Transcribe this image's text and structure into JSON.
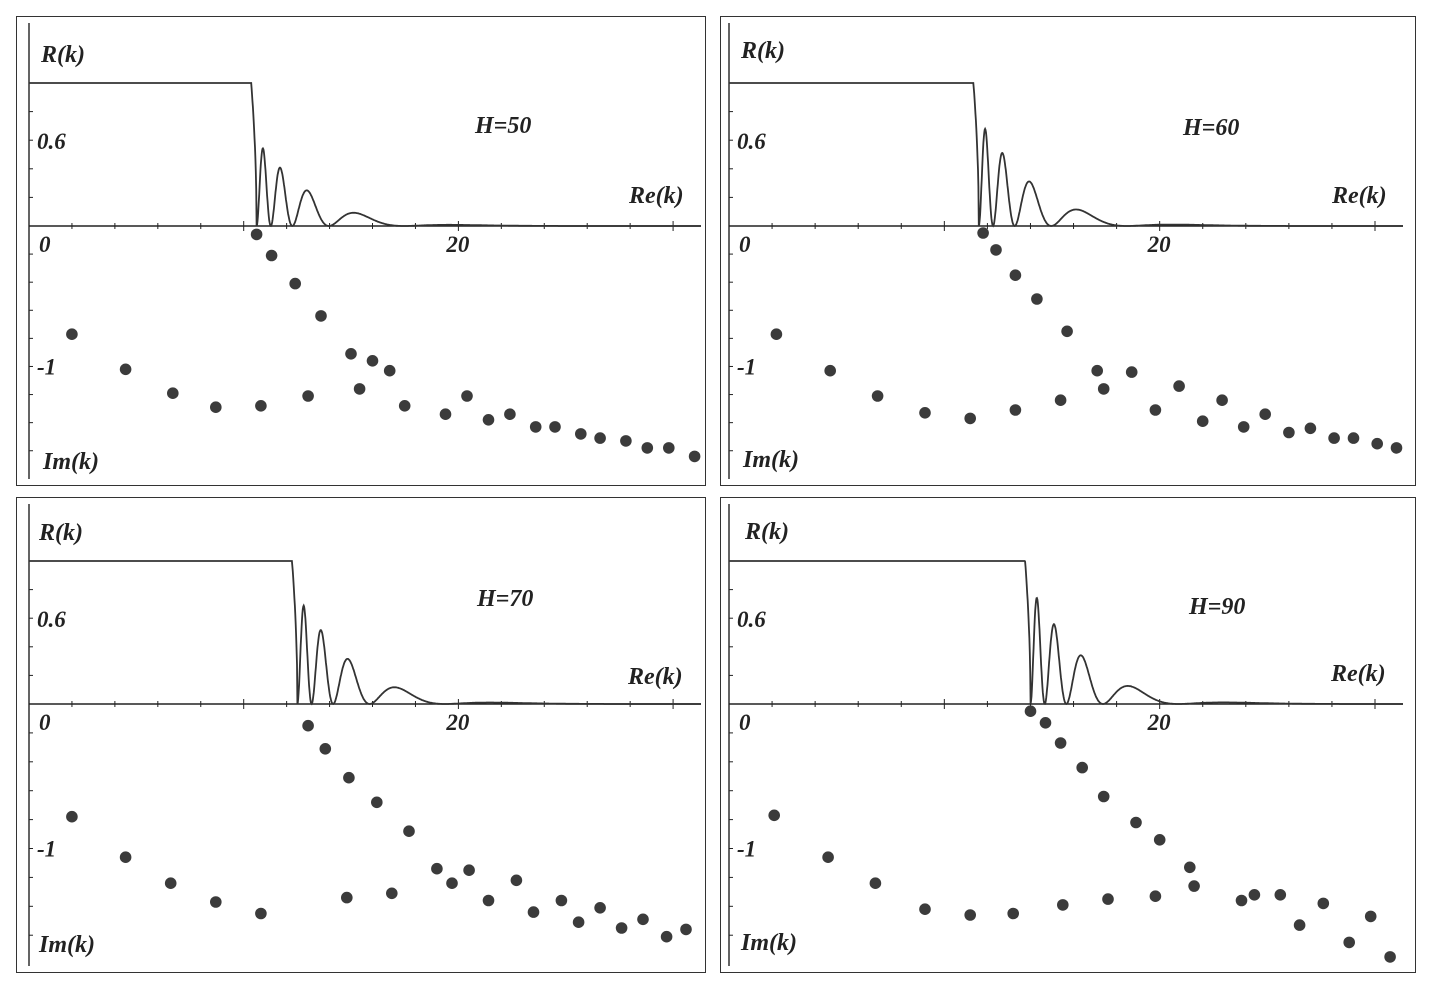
{
  "chart_data": [
    {
      "type": "line+scatter",
      "annotation": "H=50",
      "ylabel_top": "R(k)",
      "ylabel_bottom": "Im(k)",
      "xlabel": "Re(k)",
      "xtick_labels": [
        {
          "value": 0,
          "label": "0"
        },
        {
          "value": 20,
          "label": "20"
        }
      ],
      "r_tick_label": {
        "value": 0.6,
        "label": "0.6"
      },
      "im_tick_label": {
        "value": -1,
        "label": "-1"
      },
      "xlim": [
        0,
        31.3
      ],
      "r_ylim": [
        0,
        1.0
      ],
      "im_ylim": [
        -1.73,
        0
      ],
      "reflection_curve": {
        "plateau_value": 1.0,
        "cutoff": 10.6,
        "first_lobe_peak": 0.6
      },
      "poles": [
        {
          "x": 10.6,
          "y": -0.06
        },
        {
          "x": 11.3,
          "y": -0.21
        },
        {
          "x": 12.4,
          "y": -0.41
        },
        {
          "x": 13.6,
          "y": -0.64
        },
        {
          "x": 15.0,
          "y": -0.91
        },
        {
          "x": 16.0,
          "y": -0.96
        },
        {
          "x": 16.8,
          "y": -1.03
        },
        {
          "x": 2.0,
          "y": -0.77
        },
        {
          "x": 4.5,
          "y": -1.02
        },
        {
          "x": 6.7,
          "y": -1.19
        },
        {
          "x": 8.7,
          "y": -1.29
        },
        {
          "x": 10.8,
          "y": -1.28
        },
        {
          "x": 13.0,
          "y": -1.21
        },
        {
          "x": 15.4,
          "y": -1.16
        },
        {
          "x": 17.5,
          "y": -1.28
        },
        {
          "x": 19.4,
          "y": -1.34
        },
        {
          "x": 20.4,
          "y": -1.21
        },
        {
          "x": 21.4,
          "y": -1.38
        },
        {
          "x": 22.4,
          "y": -1.34
        },
        {
          "x": 23.6,
          "y": -1.43
        },
        {
          "x": 24.5,
          "y": -1.43
        },
        {
          "x": 25.7,
          "y": -1.48
        },
        {
          "x": 26.6,
          "y": -1.51
        },
        {
          "x": 27.8,
          "y": -1.53
        },
        {
          "x": 28.8,
          "y": -1.58
        },
        {
          "x": 29.8,
          "y": -1.58
        },
        {
          "x": 31.0,
          "y": -1.64
        }
      ]
    },
    {
      "type": "line+scatter",
      "annotation": "H=60",
      "ylabel_top": "R(k)",
      "ylabel_bottom": "Im(k)",
      "xlabel": "Re(k)",
      "xtick_labels": [
        {
          "value": 0,
          "label": "0"
        },
        {
          "value": 20,
          "label": "20"
        }
      ],
      "r_tick_label": {
        "value": 0.6,
        "label": "0.6"
      },
      "im_tick_label": {
        "value": -1,
        "label": "-1"
      },
      "xlim": [
        0,
        31.3
      ],
      "r_ylim": [
        0,
        1.0
      ],
      "im_ylim": [
        -1.73,
        0
      ],
      "reflection_curve": {
        "plateau_value": 1.0,
        "cutoff": 11.6,
        "first_lobe_peak": 0.75
      },
      "poles": [
        {
          "x": 11.8,
          "y": -0.05
        },
        {
          "x": 12.4,
          "y": -0.17
        },
        {
          "x": 13.3,
          "y": -0.35
        },
        {
          "x": 14.3,
          "y": -0.52
        },
        {
          "x": 15.7,
          "y": -0.75
        },
        {
          "x": 17.1,
          "y": -1.03
        },
        {
          "x": 17.4,
          "y": -1.16
        },
        {
          "x": 18.7,
          "y": -1.04
        },
        {
          "x": 19.8,
          "y": -1.31
        },
        {
          "x": 20.9,
          "y": -1.14
        },
        {
          "x": 22.0,
          "y": -1.39
        },
        {
          "x": 22.9,
          "y": -1.24
        },
        {
          "x": 23.9,
          "y": -1.43
        },
        {
          "x": 24.9,
          "y": -1.34
        },
        {
          "x": 26.0,
          "y": -1.47
        },
        {
          "x": 27.0,
          "y": -1.44
        },
        {
          "x": 28.1,
          "y": -1.51
        },
        {
          "x": 29.0,
          "y": -1.51
        },
        {
          "x": 30.1,
          "y": -1.55
        },
        {
          "x": 31.0,
          "y": -1.58
        },
        {
          "x": 2.2,
          "y": -0.77
        },
        {
          "x": 4.7,
          "y": -1.03
        },
        {
          "x": 6.9,
          "y": -1.21
        },
        {
          "x": 9.1,
          "y": -1.33
        },
        {
          "x": 11.2,
          "y": -1.37
        },
        {
          "x": 13.3,
          "y": -1.31
        },
        {
          "x": 15.4,
          "y": -1.24
        }
      ]
    },
    {
      "type": "line+scatter",
      "annotation": "H=70",
      "ylabel_top": "R(k)",
      "ylabel_bottom": "Im(k)",
      "xlabel": "Re(k)",
      "xtick_labels": [
        {
          "value": 0,
          "label": "0"
        },
        {
          "value": 20,
          "label": "20"
        }
      ],
      "r_tick_label": {
        "value": 0.6,
        "label": "0.6"
      },
      "im_tick_label": {
        "value": -1,
        "label": "-1"
      },
      "xlim": [
        0,
        31.3
      ],
      "r_ylim": [
        0,
        1.0
      ],
      "im_ylim": [
        -1.73,
        0
      ],
      "reflection_curve": {
        "plateau_value": 1.0,
        "cutoff": 12.5,
        "first_lobe_peak": 0.76
      },
      "poles": [
        {
          "x": 13.0,
          "y": -0.15
        },
        {
          "x": 13.8,
          "y": -0.31
        },
        {
          "x": 14.9,
          "y": -0.51
        },
        {
          "x": 16.2,
          "y": -0.68
        },
        {
          "x": 17.7,
          "y": -0.88
        },
        {
          "x": 19.0,
          "y": -1.14
        },
        {
          "x": 19.7,
          "y": -1.24
        },
        {
          "x": 20.5,
          "y": -1.15
        },
        {
          "x": 21.4,
          "y": -1.36
        },
        {
          "x": 22.7,
          "y": -1.22
        },
        {
          "x": 23.5,
          "y": -1.44
        },
        {
          "x": 24.8,
          "y": -1.36
        },
        {
          "x": 25.6,
          "y": -1.51
        },
        {
          "x": 26.6,
          "y": -1.41
        },
        {
          "x": 27.6,
          "y": -1.55
        },
        {
          "x": 28.6,
          "y": -1.49
        },
        {
          "x": 29.7,
          "y": -1.61
        },
        {
          "x": 30.6,
          "y": -1.56
        },
        {
          "x": 2.0,
          "y": -0.78
        },
        {
          "x": 4.5,
          "y": -1.06
        },
        {
          "x": 6.6,
          "y": -1.24
        },
        {
          "x": 8.7,
          "y": -1.37
        },
        {
          "x": 10.8,
          "y": -1.45
        },
        {
          "x": 14.8,
          "y": -1.34
        },
        {
          "x": 16.9,
          "y": -1.31
        }
      ]
    },
    {
      "type": "line+scatter",
      "annotation": "H=90",
      "ylabel_top": "R(k)",
      "ylabel_bottom": "Im(k)",
      "xlabel": "Re(k)",
      "xtick_labels": [
        {
          "value": 0,
          "label": "0"
        },
        {
          "value": 20,
          "label": "20"
        }
      ],
      "r_tick_label": {
        "value": 0.6,
        "label": "0.6"
      },
      "im_tick_label": {
        "value": -1,
        "label": "-1"
      },
      "xlim": [
        0,
        31.3
      ],
      "r_ylim": [
        0,
        1.0
      ],
      "im_ylim": [
        -1.73,
        0
      ],
      "reflection_curve": {
        "plateau_value": 1.0,
        "cutoff": 14.0,
        "first_lobe_peak": 0.82
      },
      "poles": [
        {
          "x": 14.0,
          "y": -0.05
        },
        {
          "x": 14.7,
          "y": -0.13
        },
        {
          "x": 15.4,
          "y": -0.27
        },
        {
          "x": 16.4,
          "y": -0.44
        },
        {
          "x": 17.4,
          "y": -0.64
        },
        {
          "x": 18.9,
          "y": -0.82
        },
        {
          "x": 20.0,
          "y": -0.94
        },
        {
          "x": 21.4,
          "y": -1.13
        },
        {
          "x": 23.8,
          "y": -1.36
        },
        {
          "x": 24.4,
          "y": -1.32
        },
        {
          "x": 25.6,
          "y": -1.32
        },
        {
          "x": 26.5,
          "y": -1.53
        },
        {
          "x": 27.6,
          "y": -1.38
        },
        {
          "x": 28.8,
          "y": -1.65
        },
        {
          "x": 29.8,
          "y": -1.47
        },
        {
          "x": 30.7,
          "y": -1.75
        },
        {
          "x": 2.1,
          "y": -0.77
        },
        {
          "x": 4.6,
          "y": -1.06
        },
        {
          "x": 6.8,
          "y": -1.24
        },
        {
          "x": 9.1,
          "y": -1.42
        },
        {
          "x": 11.2,
          "y": -1.46
        },
        {
          "x": 13.2,
          "y": -1.45
        },
        {
          "x": 15.5,
          "y": -1.39
        },
        {
          "x": 17.6,
          "y": -1.35
        },
        {
          "x": 19.8,
          "y": -1.33
        },
        {
          "x": 21.6,
          "y": -1.26
        }
      ]
    }
  ]
}
